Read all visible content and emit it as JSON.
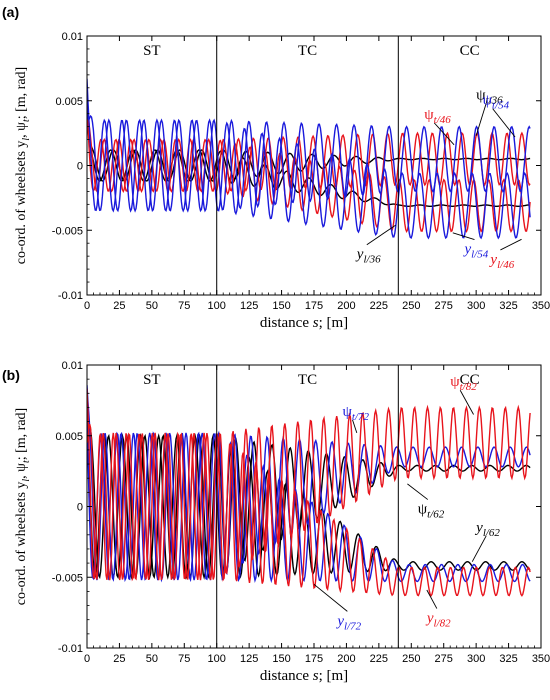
{
  "chart_data": [
    {
      "type": "line",
      "panel_label": "(a)",
      "xlabel_text": "distance ",
      "xlabel_var": "s",
      "xlabel_unit": "; [m]",
      "ylabel": "co-ord. of wheelsets y",
      "ylabel_sub_y": "l",
      "ylabel_mid": ", ψ",
      "ylabel_sub_psi": "t",
      "ylabel_unit": "; [m, rad]",
      "xlim": [
        0,
        350
      ],
      "ylim": [
        -0.01,
        0.01
      ],
      "xticks": [
        0,
        25,
        50,
        75,
        100,
        125,
        150,
        175,
        200,
        225,
        250,
        275,
        300,
        325,
        350
      ],
      "xtick_labels": [
        "0",
        "25",
        "50",
        "75",
        "100",
        "125",
        "150",
        "175",
        "200",
        "225",
        "250",
        "275",
        "300",
        "325",
        "350"
      ],
      "yticks": [
        -0.01,
        -0.005,
        0,
        0.005,
        0.01
      ],
      "ytick_labels": [
        "-0.01",
        "-0.005",
        "0",
        "0.005",
        "0.01"
      ],
      "regions": [
        {
          "label": "ST",
          "x_center": 50
        },
        {
          "label": "TC",
          "x_center": 170
        },
        {
          "label": "CC",
          "x_center": 295
        }
      ],
      "region_boundaries": [
        100,
        240
      ],
      "series": [
        {
          "name": "ψt/36",
          "color": "#000000",
          "kind": "psi",
          "amp_start": 0.0012,
          "amp_end": 5e-05,
          "offset_end": 0.0005,
          "wavelength": 17,
          "phase": 0.3
        },
        {
          "name": "yl/36",
          "color": "#000000",
          "kind": "y",
          "amp_start": 0.0012,
          "amp_end": 5e-05,
          "offset_end": -0.0031,
          "wavelength": 17,
          "phase": 1.1
        },
        {
          "name": "ψt/46",
          "color": "#e8141c",
          "kind": "psi",
          "amp_start": 0.002,
          "amp_end": 0.002,
          "offset_end": 0.0005,
          "wavelength": 11.5,
          "phase": 0.6
        },
        {
          "name": "yl/46",
          "color": "#e8141c",
          "kind": "y",
          "amp_start": 0.002,
          "amp_end": 0.002,
          "offset_end": -0.0031,
          "wavelength": 11.5,
          "phase": 2.0
        },
        {
          "name": "ψt/54",
          "color": "#1a1adc",
          "kind": "psi",
          "amp_start": 0.0035,
          "amp_end": 0.0025,
          "offset_end": 0.0005,
          "wavelength": 13.5,
          "phase": 0.0
        },
        {
          "name": "yl/54",
          "color": "#1a1adc",
          "kind": "y",
          "amp_start": 0.0035,
          "amp_end": 0.0025,
          "offset_end": -0.0031,
          "wavelength": 13.5,
          "phase": 1.6
        }
      ],
      "annotations": [
        {
          "main": "ψ",
          "sub": "t/36",
          "color": "#000000",
          "x": 300,
          "y": 0.0051,
          "target_x": 300,
          "target_y": 0.0023
        },
        {
          "main": "ψ",
          "sub": "t/46",
          "color": "#e8141c",
          "x": 260,
          "y": 0.0036,
          "target_x": 283,
          "target_y": 0.0016
        },
        {
          "main": "ψ",
          "sub": "t/54",
          "color": "#1a1adc",
          "x": 305,
          "y": 0.0047,
          "target_x": 330,
          "target_y": 0.0022
        },
        {
          "main": "y",
          "sub": "l/36",
          "color": "#000000",
          "x": 208,
          "y": -0.0072,
          "target_x": 238,
          "target_y": -0.0046
        },
        {
          "main": "y",
          "sub": "l/54",
          "color": "#1a1adc",
          "x": 291,
          "y": -0.0068,
          "target_x": 282,
          "target_y": -0.0052
        },
        {
          "main": "y",
          "sub": "l/46",
          "color": "#e8141c",
          "x": 311,
          "y": -0.0076,
          "target_x": 335,
          "target_y": -0.0057
        }
      ]
    },
    {
      "type": "line",
      "panel_label": "(b)",
      "xlabel_text": "distance ",
      "xlabel_var": "s",
      "xlabel_unit": "; [m]",
      "ylabel": "co-ord. of wheelsets y",
      "ylabel_sub_y": "l",
      "ylabel_mid": ", ψ",
      "ylabel_sub_psi": "t",
      "ylabel_unit": "; [m, rad]",
      "xlim": [
        0,
        350
      ],
      "ylim": [
        -0.01,
        0.01
      ],
      "xticks": [
        0,
        25,
        50,
        75,
        100,
        125,
        150,
        175,
        200,
        225,
        250,
        275,
        300,
        325,
        350
      ],
      "xtick_labels": [
        "0",
        "25",
        "50",
        "75",
        "100",
        "125",
        "150",
        "175",
        "200",
        "225",
        "250",
        "275",
        "300",
        "325",
        "350"
      ],
      "yticks": [
        -0.01,
        -0.005,
        0,
        0.005,
        0.01
      ],
      "ytick_labels": [
        "-0.01",
        "-0.005",
        "0",
        "0.005",
        "0.01"
      ],
      "regions": [
        {
          "label": "ST",
          "x_center": 50
        },
        {
          "label": "TC",
          "x_center": 170
        },
        {
          "label": "CC",
          "x_center": 295
        }
      ],
      "region_boundaries": [
        100,
        240
      ],
      "series": [
        {
          "name": "ψt/62",
          "color": "#000000",
          "kind": "psi",
          "amp_start": 0.005,
          "amp_end": 0.0002,
          "offset_end": 0.0027,
          "wavelength": 14,
          "phase": 0.4
        },
        {
          "name": "yl/62",
          "color": "#000000",
          "kind": "y",
          "amp_start": 0.005,
          "amp_end": 0.0003,
          "offset_end": -0.0042,
          "wavelength": 14,
          "phase": 1.9
        },
        {
          "name": "ψt/72",
          "color": "#1a1adc",
          "kind": "psi",
          "amp_start": 0.0052,
          "amp_end": 0.0007,
          "offset_end": 0.0035,
          "wavelength": 12.5,
          "phase": 0.9
        },
        {
          "name": "yl/72",
          "color": "#1a1adc",
          "kind": "y",
          "amp_start": 0.0052,
          "amp_end": 0.0006,
          "offset_end": -0.0047,
          "wavelength": 12.5,
          "phase": 2.4
        },
        {
          "name": "ψt/82",
          "color": "#e8141c",
          "kind": "psi",
          "amp_start": 0.0052,
          "amp_end": 0.0025,
          "offset_end": 0.0045,
          "wavelength": 10,
          "phase": 0.0
        },
        {
          "name": "yl/82",
          "color": "#e8141c",
          "kind": "y",
          "amp_start": 0.0052,
          "amp_end": 0.001,
          "offset_end": -0.0053,
          "wavelength": 10,
          "phase": 1.4
        }
      ],
      "annotations": [
        {
          "main": "ψ",
          "sub": "t/72",
          "color": "#1a1adc",
          "x": 197,
          "y": 0.0064,
          "target_x": 208,
          "target_y": 0.0052
        },
        {
          "main": "ψ",
          "sub": "t/82",
          "color": "#e8141c",
          "x": 280,
          "y": 0.0085,
          "target_x": 298,
          "target_y": 0.0065
        },
        {
          "main": "ψ",
          "sub": "t/62",
          "color": "#000000",
          "x": 255,
          "y": -0.0005,
          "target_x": 247,
          "target_y": 0.0016
        },
        {
          "main": "y",
          "sub": "l/62",
          "color": "#000000",
          "x": 300,
          "y": -0.0018,
          "target_x": 297,
          "target_y": -0.0039
        },
        {
          "main": "y",
          "sub": "l/72",
          "color": "#1a1adc",
          "x": 193,
          "y": -0.0084,
          "target_x": 175,
          "target_y": -0.0055
        },
        {
          "main": "y",
          "sub": "l/82",
          "color": "#e8141c",
          "x": 262,
          "y": -0.0082,
          "target_x": 262,
          "target_y": -0.0059
        }
      ]
    }
  ]
}
